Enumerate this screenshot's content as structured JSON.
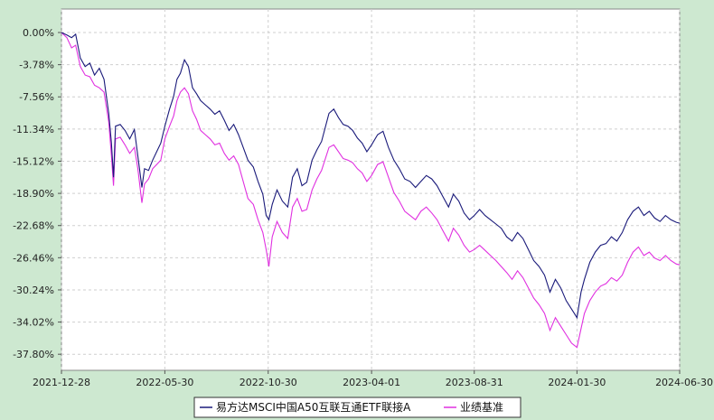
{
  "chart_data": {
    "type": "line",
    "title": "",
    "xlabel": "",
    "ylabel": "",
    "x_ticks": [
      "2021-12-28",
      "2022-05-30",
      "2022-10-30",
      "2023-04-01",
      "2023-08-31",
      "2024-01-30",
      "2024-06-30"
    ],
    "y_ticks": [
      "0.00%",
      "-3.78%",
      "-7.56%",
      "-11.34%",
      "-15.12%",
      "-18.90%",
      "-22.68%",
      "-26.46%",
      "-30.24%",
      "-34.02%",
      "-37.80%"
    ],
    "ylim": [
      -37.8,
      0
    ],
    "grid": true,
    "legend_position": "bottom-center",
    "series": [
      {
        "name": "易方达MSCI中国A50互联互通ETF联接A",
        "color": "#1a1a7a",
        "points": [
          [
            "2021-12-28",
            0.0
          ],
          [
            "2022-01-05",
            -0.3
          ],
          [
            "2022-01-12",
            -0.6
          ],
          [
            "2022-01-18",
            -0.2
          ],
          [
            "2022-01-25",
            -3.0
          ],
          [
            "2022-02-01",
            -4.0
          ],
          [
            "2022-02-08",
            -3.6
          ],
          [
            "2022-02-15",
            -5.0
          ],
          [
            "2022-02-22",
            -4.2
          ],
          [
            "2022-03-01",
            -5.5
          ],
          [
            "2022-03-08",
            -9.5
          ],
          [
            "2022-03-12",
            -13.0
          ],
          [
            "2022-03-15",
            -17.0
          ],
          [
            "2022-03-18",
            -11.0
          ],
          [
            "2022-03-25",
            -10.8
          ],
          [
            "2022-04-01",
            -11.5
          ],
          [
            "2022-04-08",
            -12.5
          ],
          [
            "2022-04-15",
            -11.4
          ],
          [
            "2022-04-20",
            -14.5
          ],
          [
            "2022-04-26",
            -18.2
          ],
          [
            "2022-04-30",
            -16.0
          ],
          [
            "2022-05-06",
            -16.2
          ],
          [
            "2022-05-12",
            -15.0
          ],
          [
            "2022-05-18",
            -14.0
          ],
          [
            "2022-05-24",
            -13.0
          ],
          [
            "2022-05-30",
            -11.0
          ],
          [
            "2022-06-06",
            -9.0
          ],
          [
            "2022-06-12",
            -7.5
          ],
          [
            "2022-06-17",
            -5.5
          ],
          [
            "2022-06-22",
            -4.8
          ],
          [
            "2022-06-28",
            -3.2
          ],
          [
            "2022-07-04",
            -4.0
          ],
          [
            "2022-07-10",
            -6.5
          ],
          [
            "2022-07-16",
            -7.2
          ],
          [
            "2022-07-22",
            -8.0
          ],
          [
            "2022-07-29",
            -8.5
          ],
          [
            "2022-08-05",
            -9.0
          ],
          [
            "2022-08-12",
            -9.6
          ],
          [
            "2022-08-19",
            -9.2
          ],
          [
            "2022-08-26",
            -10.3
          ],
          [
            "2022-09-02",
            -11.5
          ],
          [
            "2022-09-09",
            -10.8
          ],
          [
            "2022-09-16",
            -12.0
          ],
          [
            "2022-09-23",
            -13.5
          ],
          [
            "2022-09-30",
            -15.0
          ],
          [
            "2022-10-08",
            -15.8
          ],
          [
            "2022-10-15",
            -17.5
          ],
          [
            "2022-10-22",
            -19.0
          ],
          [
            "2022-10-27",
            -21.5
          ],
          [
            "2022-10-31",
            -22.0
          ],
          [
            "2022-11-05",
            -20.2
          ],
          [
            "2022-11-12",
            -18.5
          ],
          [
            "2022-11-20",
            -19.8
          ],
          [
            "2022-11-28",
            -20.5
          ],
          [
            "2022-12-05",
            -17.0
          ],
          [
            "2022-12-12",
            -16.0
          ],
          [
            "2022-12-19",
            -18.0
          ],
          [
            "2022-12-26",
            -17.6
          ],
          [
            "2023-01-03",
            -15.0
          ],
          [
            "2023-01-10",
            -13.8
          ],
          [
            "2023-01-17",
            -12.8
          ],
          [
            "2023-01-28",
            -9.5
          ],
          [
            "2023-02-04",
            -9.0
          ],
          [
            "2023-02-11",
            -10.0
          ],
          [
            "2023-02-18",
            -10.8
          ],
          [
            "2023-02-25",
            -11.0
          ],
          [
            "2023-03-04",
            -11.5
          ],
          [
            "2023-03-11",
            -12.4
          ],
          [
            "2023-03-18",
            -13.0
          ],
          [
            "2023-03-25",
            -14.0
          ],
          [
            "2023-04-01",
            -13.2
          ],
          [
            "2023-04-10",
            -12.0
          ],
          [
            "2023-04-18",
            -11.6
          ],
          [
            "2023-04-26",
            -13.5
          ],
          [
            "2023-05-04",
            -15.0
          ],
          [
            "2023-05-12",
            -16.0
          ],
          [
            "2023-05-20",
            -17.2
          ],
          [
            "2023-05-28",
            -17.5
          ],
          [
            "2023-06-05",
            -18.2
          ],
          [
            "2023-06-13",
            -17.5
          ],
          [
            "2023-06-21",
            -16.8
          ],
          [
            "2023-06-29",
            -17.2
          ],
          [
            "2023-07-07",
            -18.0
          ],
          [
            "2023-07-15",
            -19.2
          ],
          [
            "2023-07-24",
            -20.5
          ],
          [
            "2023-07-31",
            -19.0
          ],
          [
            "2023-08-08",
            -19.8
          ],
          [
            "2023-08-16",
            -21.2
          ],
          [
            "2023-08-24",
            -22.0
          ],
          [
            "2023-08-31",
            -21.5
          ],
          [
            "2023-09-08",
            -20.8
          ],
          [
            "2023-09-16",
            -21.5
          ],
          [
            "2023-09-24",
            -22.0
          ],
          [
            "2023-10-02",
            -22.5
          ],
          [
            "2023-10-10",
            -23.0
          ],
          [
            "2023-10-18",
            -24.0
          ],
          [
            "2023-10-26",
            -24.5
          ],
          [
            "2023-11-03",
            -23.5
          ],
          [
            "2023-11-11",
            -24.2
          ],
          [
            "2023-11-19",
            -25.5
          ],
          [
            "2023-11-27",
            -26.8
          ],
          [
            "2023-12-05",
            -27.5
          ],
          [
            "2023-12-13",
            -28.5
          ],
          [
            "2023-12-21",
            -30.5
          ],
          [
            "2023-12-29",
            -29.0
          ],
          [
            "2024-01-06",
            -30.0
          ],
          [
            "2024-01-14",
            -31.5
          ],
          [
            "2024-01-22",
            -32.5
          ],
          [
            "2024-01-30",
            -33.5
          ],
          [
            "2024-02-05",
            -30.5
          ],
          [
            "2024-02-10",
            -29.0
          ],
          [
            "2024-02-18",
            -27.0
          ],
          [
            "2024-02-26",
            -25.8
          ],
          [
            "2024-03-05",
            -25.0
          ],
          [
            "2024-03-13",
            -24.8
          ],
          [
            "2024-03-21",
            -24.0
          ],
          [
            "2024-03-29",
            -24.5
          ],
          [
            "2024-04-06",
            -23.5
          ],
          [
            "2024-04-14",
            -22.0
          ],
          [
            "2024-04-22",
            -21.0
          ],
          [
            "2024-04-30",
            -20.5
          ],
          [
            "2024-05-08",
            -21.5
          ],
          [
            "2024-05-16",
            -21.0
          ],
          [
            "2024-05-24",
            -21.8
          ],
          [
            "2024-06-01",
            -22.2
          ],
          [
            "2024-06-09",
            -21.5
          ],
          [
            "2024-06-17",
            -22.0
          ],
          [
            "2024-06-25",
            -22.3
          ],
          [
            "2024-06-30",
            -22.4
          ]
        ]
      },
      {
        "name": "业绩基准",
        "color": "#e030e0",
        "points": [
          [
            "2021-12-28",
            0.0
          ],
          [
            "2022-01-05",
            -0.6
          ],
          [
            "2022-01-12",
            -1.8
          ],
          [
            "2022-01-18",
            -1.5
          ],
          [
            "2022-01-25",
            -4.0
          ],
          [
            "2022-02-01",
            -5.0
          ],
          [
            "2022-02-08",
            -5.2
          ],
          [
            "2022-02-15",
            -6.2
          ],
          [
            "2022-02-22",
            -6.5
          ],
          [
            "2022-03-01",
            -7.0
          ],
          [
            "2022-03-08",
            -10.5
          ],
          [
            "2022-03-12",
            -14.5
          ],
          [
            "2022-03-15",
            -18.0
          ],
          [
            "2022-03-18",
            -12.5
          ],
          [
            "2022-03-25",
            -12.3
          ],
          [
            "2022-04-01",
            -13.2
          ],
          [
            "2022-04-08",
            -14.2
          ],
          [
            "2022-04-15",
            -13.5
          ],
          [
            "2022-04-20",
            -16.0
          ],
          [
            "2022-04-26",
            -20.0
          ],
          [
            "2022-04-30",
            -17.8
          ],
          [
            "2022-05-06",
            -17.2
          ],
          [
            "2022-05-12",
            -16.0
          ],
          [
            "2022-05-18",
            -15.5
          ],
          [
            "2022-05-24",
            -15.0
          ],
          [
            "2022-05-30",
            -12.5
          ],
          [
            "2022-06-06",
            -11.0
          ],
          [
            "2022-06-12",
            -9.8
          ],
          [
            "2022-06-17",
            -8.0
          ],
          [
            "2022-06-22",
            -7.0
          ],
          [
            "2022-06-28",
            -6.5
          ],
          [
            "2022-07-04",
            -7.2
          ],
          [
            "2022-07-10",
            -9.2
          ],
          [
            "2022-07-16",
            -10.2
          ],
          [
            "2022-07-22",
            -11.5
          ],
          [
            "2022-07-29",
            -12.0
          ],
          [
            "2022-08-05",
            -12.5
          ],
          [
            "2022-08-12",
            -13.2
          ],
          [
            "2022-08-19",
            -13.0
          ],
          [
            "2022-08-26",
            -14.2
          ],
          [
            "2022-09-02",
            -15.0
          ],
          [
            "2022-09-09",
            -14.5
          ],
          [
            "2022-09-16",
            -15.5
          ],
          [
            "2022-09-23",
            -17.5
          ],
          [
            "2022-09-30",
            -19.5
          ],
          [
            "2022-10-08",
            -20.2
          ],
          [
            "2022-10-15",
            -22.0
          ],
          [
            "2022-10-22",
            -23.5
          ],
          [
            "2022-10-27",
            -25.5
          ],
          [
            "2022-10-31",
            -27.5
          ],
          [
            "2022-11-05",
            -24.0
          ],
          [
            "2022-11-12",
            -22.2
          ],
          [
            "2022-11-20",
            -23.5
          ],
          [
            "2022-11-28",
            -24.2
          ],
          [
            "2022-12-05",
            -20.5
          ],
          [
            "2022-12-12",
            -19.5
          ],
          [
            "2022-12-19",
            -21.0
          ],
          [
            "2022-12-26",
            -20.8
          ],
          [
            "2023-01-03",
            -18.5
          ],
          [
            "2023-01-10",
            -17.2
          ],
          [
            "2023-01-17",
            -16.2
          ],
          [
            "2023-01-28",
            -13.5
          ],
          [
            "2023-02-04",
            -13.2
          ],
          [
            "2023-02-11",
            -14.0
          ],
          [
            "2023-02-18",
            -14.8
          ],
          [
            "2023-02-25",
            -15.0
          ],
          [
            "2023-03-04",
            -15.3
          ],
          [
            "2023-03-11",
            -16.0
          ],
          [
            "2023-03-18",
            -16.5
          ],
          [
            "2023-03-25",
            -17.5
          ],
          [
            "2023-04-01",
            -16.8
          ],
          [
            "2023-04-10",
            -15.5
          ],
          [
            "2023-04-18",
            -15.2
          ],
          [
            "2023-04-26",
            -17.0
          ],
          [
            "2023-05-04",
            -18.8
          ],
          [
            "2023-05-12",
            -19.8
          ],
          [
            "2023-05-20",
            -21.0
          ],
          [
            "2023-05-28",
            -21.5
          ],
          [
            "2023-06-05",
            -22.0
          ],
          [
            "2023-06-13",
            -21.0
          ],
          [
            "2023-06-21",
            -20.5
          ],
          [
            "2023-06-29",
            -21.2
          ],
          [
            "2023-07-07",
            -22.0
          ],
          [
            "2023-07-15",
            -23.2
          ],
          [
            "2023-07-24",
            -24.5
          ],
          [
            "2023-07-31",
            -23.0
          ],
          [
            "2023-08-08",
            -23.8
          ],
          [
            "2023-08-16",
            -25.0
          ],
          [
            "2023-08-24",
            -25.8
          ],
          [
            "2023-08-31",
            -25.5
          ],
          [
            "2023-09-08",
            -25.0
          ],
          [
            "2023-09-16",
            -25.6
          ],
          [
            "2023-09-24",
            -26.2
          ],
          [
            "2023-10-02",
            -26.8
          ],
          [
            "2023-10-10",
            -27.5
          ],
          [
            "2023-10-18",
            -28.2
          ],
          [
            "2023-10-26",
            -29.0
          ],
          [
            "2023-11-03",
            -28.0
          ],
          [
            "2023-11-11",
            -28.8
          ],
          [
            "2023-11-19",
            -30.0
          ],
          [
            "2023-11-27",
            -31.2
          ],
          [
            "2023-12-05",
            -32.0
          ],
          [
            "2023-12-13",
            -33.0
          ],
          [
            "2023-12-21",
            -35.0
          ],
          [
            "2023-12-29",
            -33.5
          ],
          [
            "2024-01-06",
            -34.5
          ],
          [
            "2024-01-14",
            -35.5
          ],
          [
            "2024-01-22",
            -36.5
          ],
          [
            "2024-01-30",
            -37.0
          ],
          [
            "2024-02-05",
            -34.8
          ],
          [
            "2024-02-10",
            -33.0
          ],
          [
            "2024-02-18",
            -31.5
          ],
          [
            "2024-02-26",
            -30.5
          ],
          [
            "2024-03-05",
            -29.8
          ],
          [
            "2024-03-13",
            -29.5
          ],
          [
            "2024-03-21",
            -28.8
          ],
          [
            "2024-03-29",
            -29.2
          ],
          [
            "2024-04-06",
            -28.5
          ],
          [
            "2024-04-14",
            -27.0
          ],
          [
            "2024-04-22",
            -25.8
          ],
          [
            "2024-04-30",
            -25.2
          ],
          [
            "2024-05-08",
            -26.2
          ],
          [
            "2024-05-16",
            -25.8
          ],
          [
            "2024-05-24",
            -26.5
          ],
          [
            "2024-06-01",
            -26.8
          ],
          [
            "2024-06-09",
            -26.2
          ],
          [
            "2024-06-17",
            -26.8
          ],
          [
            "2024-06-25",
            -27.2
          ],
          [
            "2024-06-30",
            -27.3
          ]
        ]
      }
    ]
  }
}
